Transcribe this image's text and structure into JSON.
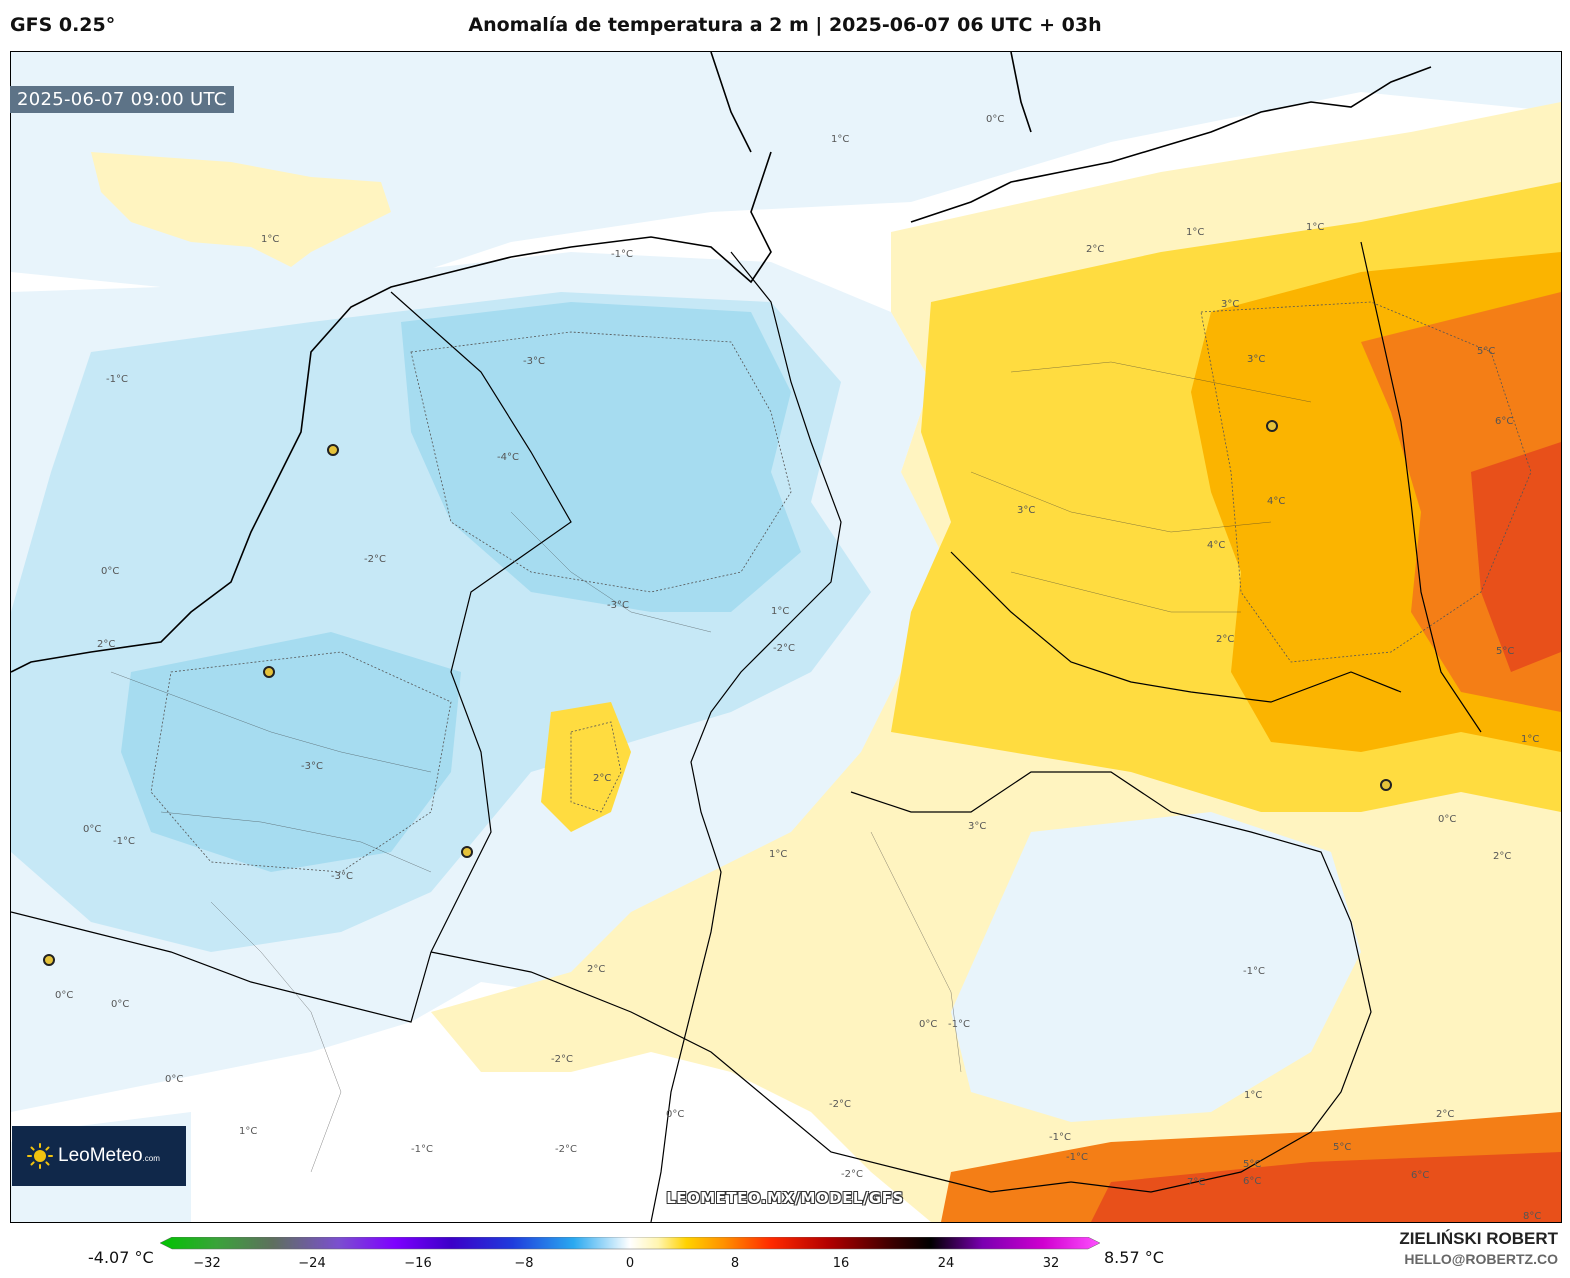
{
  "header": {
    "model": "GFS 0.25°",
    "title": "Anomalía de temperatura a 2 m | 2025-06-07 06 UTC + 03h"
  },
  "map": {
    "valid_time": "2025-06-07 09:00 UTC",
    "contour_labels": [
      "1°C",
      "0°C",
      "1°C",
      "-1°C",
      "1°C",
      "2°C",
      "1°C",
      "3°C",
      "-3°C",
      "-1°C",
      "-4°C",
      "3°C",
      "5°C",
      "6°C",
      "4°C",
      "2°C",
      "-2°C",
      "0°C",
      "-3°C",
      "-2°C",
      "4°C",
      "5°C",
      "3°C",
      "2°C",
      "1°C",
      "-3°C",
      "2°C",
      "1°C",
      "0°C",
      "-1°C",
      "0°C",
      "2°C",
      "3°C",
      "0°C",
      "1°C",
      "-3°C",
      "-1°C",
      "-1°C",
      "0°C",
      "0°C",
      "-2°C",
      "0°C",
      "-1°C",
      "-1°C",
      "2°C",
      "5°C",
      "6°C",
      "7°C",
      "8°C",
      "6°C",
      "5°C",
      "1°C",
      "2°C",
      "-1°C",
      "1°C",
      "-2°C",
      "-2°C",
      "0°C",
      "-2°C"
    ],
    "watermark": "LEOMETEO.MX/MODEL/GFS"
  },
  "logo": {
    "name": "LeoMeteo",
    "suffix": ".com"
  },
  "colorbar": {
    "min_label": "-4.07 °C",
    "max_label": "8.57 °C",
    "ticks": [
      "−32",
      "−24",
      "−16",
      "−8",
      "0",
      "8",
      "16",
      "24",
      "32"
    ],
    "range": [
      -32,
      32
    ]
  },
  "author": {
    "name": "ZIELIŃSKI ROBERT",
    "email": "HELLO@ROBERTZ.CO"
  },
  "colors": {
    "cold_light": "#e8f4fb",
    "cold_mid": "#c6e8f6",
    "cold_strong": "#a6dcf0",
    "warm_light": "#fff4c0",
    "warm_mid": "#ffdc40",
    "warm_strong": "#fbb400",
    "hot": "#f47e16",
    "very_hot": "#e8501a",
    "logo_bg": "#10284a",
    "timestamp_bg": "#5d7387"
  }
}
